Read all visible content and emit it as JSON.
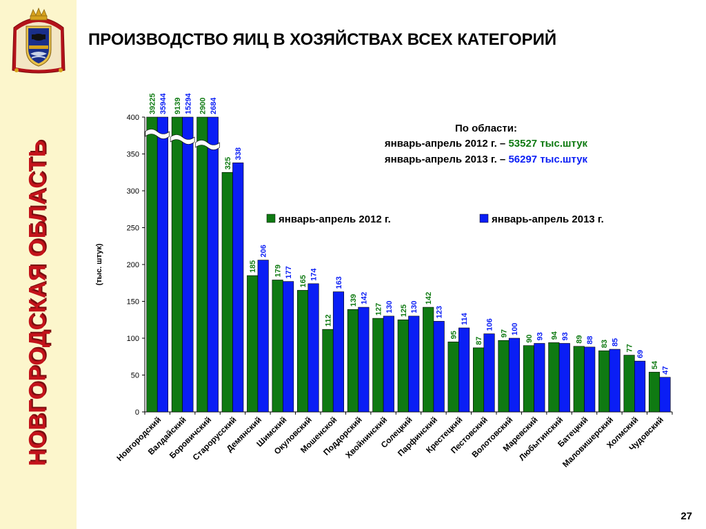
{
  "sidebar": {
    "region_title": "НОВГОРОДСКАЯ ОБЛАСТЬ",
    "emblem_icon": "coat-of-arms-icon"
  },
  "header": {
    "title": "ПРОИЗВОДСТВО ЯИЦ В ХОЗЯЙСТВАХ ВСЕХ КАТЕГОРИЙ"
  },
  "summary": {
    "heading": "По области:",
    "line1_prefix": "январь-апрель 2012 г. – ",
    "line1_value": "53527 тыс.штук",
    "line2_prefix": "январь-апрель 2013 г. – ",
    "line2_value": "56297 тыс.штук"
  },
  "footer": {
    "page_number": "27"
  },
  "colors": {
    "series_2012": "#0f7a12",
    "series_2013": "#0a1ef5",
    "sidebar_bg": "#fcf6cc",
    "region_title": "#c3131b"
  },
  "chart_data": {
    "type": "bar",
    "title": "",
    "xlabel": "",
    "ylabel": "(тыс. штук)",
    "ylim": [
      0,
      400
    ],
    "yticks": [
      0,
      50,
      100,
      150,
      200,
      250,
      300,
      350,
      400
    ],
    "axis_break": "top bars truncated at 400 with break marks",
    "legend_position": "top-right",
    "grid": false,
    "categories": [
      "Новгородский",
      "Валдайский",
      "Боровичский",
      "Старорусский",
      "Демянский",
      "Шимский",
      "Окуловский",
      "Мошенской",
      "Поддорский",
      "Хвойнинский",
      "Солецкий",
      "Парфинский",
      "Крестецкий",
      "Пестовский",
      "Волотовский",
      "Маревский",
      "Любытинский",
      "Батецкий",
      "Маловишерский",
      "Холмский",
      "Чудовский"
    ],
    "series": [
      {
        "name": "январь-апрель 2012 г.",
        "values": [
          39225,
          9139,
          2900,
          325,
          185,
          179,
          165,
          112,
          139,
          127,
          125,
          142,
          95,
          87,
          97,
          90,
          94,
          89,
          83,
          77,
          54
        ]
      },
      {
        "name": "январь-апрель 2013 г.",
        "values": [
          35944,
          15294,
          2684,
          338,
          206,
          177,
          174,
          163,
          142,
          130,
          130,
          123,
          114,
          106,
          100,
          93,
          93,
          88,
          85,
          69,
          47
        ]
      }
    ]
  }
}
